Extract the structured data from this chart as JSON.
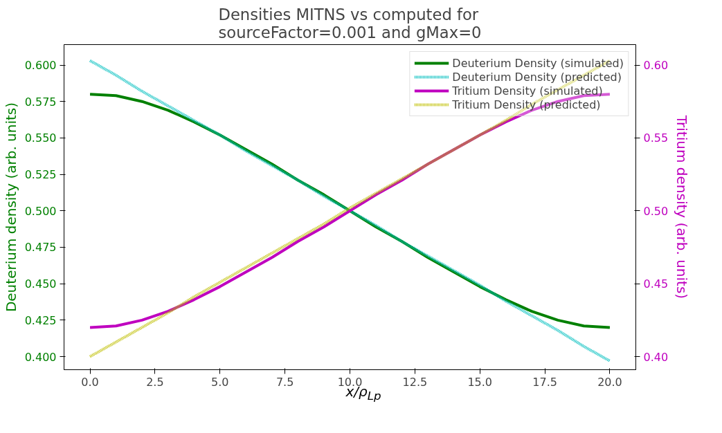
{
  "chart_data": {
    "type": "line",
    "title": "Densities MITNS vs computed for\nsourceFactor=0.001 and gMax=0",
    "xlabel": "x/ρ$_{Lp}$",
    "ylabel": "Deuterium density (arb. units)",
    "y2label": "Tritium density (arb. units)",
    "x": [
      0,
      1,
      2,
      3,
      4,
      5,
      6,
      7,
      8,
      9,
      10,
      11,
      12,
      13,
      14,
      15,
      16,
      17,
      18,
      19,
      20
    ],
    "series": [
      {
        "name": "Deuterium Density (simulated)",
        "color": "#008000",
        "line_style": "solid",
        "values": [
          0.58,
          0.579,
          0.575,
          0.569,
          0.561,
          0.552,
          0.542,
          0.532,
          0.521,
          0.511,
          0.5,
          0.489,
          0.479,
          0.468,
          0.458,
          0.448,
          0.439,
          0.431,
          0.425,
          0.421,
          0.42
        ]
      },
      {
        "name": "Deuterium Density (predicted)",
        "color": "#00bfbf",
        "line_style": "dotted",
        "values": [
          0.603,
          0.593,
          0.582,
          0.572,
          0.562,
          0.552,
          0.541,
          0.531,
          0.521,
          0.51,
          0.5,
          0.49,
          0.479,
          0.469,
          0.459,
          0.449,
          0.438,
          0.428,
          0.418,
          0.407,
          0.397
        ]
      },
      {
        "name": "Tritium Density (simulated)",
        "color": "#bf00bf",
        "line_style": "solid",
        "axis": "y2",
        "values": [
          0.42,
          0.421,
          0.425,
          0.431,
          0.439,
          0.448,
          0.458,
          0.468,
          0.479,
          0.489,
          0.5,
          0.511,
          0.521,
          0.532,
          0.542,
          0.552,
          0.561,
          0.569,
          0.575,
          0.579,
          0.58
        ]
      },
      {
        "name": "Tritium Density (predicted)",
        "color": "#bfbf00",
        "line_style": "dotted",
        "axis": "y2",
        "values": [
          0.4,
          0.41,
          0.42,
          0.43,
          0.441,
          0.451,
          0.461,
          0.471,
          0.481,
          0.491,
          0.502,
          0.512,
          0.522,
          0.532,
          0.542,
          0.552,
          0.562,
          0.573,
          0.583,
          0.593,
          0.603
        ]
      }
    ],
    "xlim": [
      -1,
      21
    ],
    "ylim": [
      0.391,
      0.614
    ],
    "y2lim": [
      0.391,
      0.614
    ],
    "xticks": [
      {
        "value": 0,
        "label": "0.0"
      },
      {
        "value": 2.5,
        "label": "2.5"
      },
      {
        "value": 5,
        "label": "5.0"
      },
      {
        "value": 7.5,
        "label": "7.5"
      },
      {
        "value": 10,
        "label": "10.0"
      },
      {
        "value": 12.5,
        "label": "12.5"
      },
      {
        "value": 15,
        "label": "15.0"
      },
      {
        "value": 17.5,
        "label": "17.5"
      },
      {
        "value": 20,
        "label": "20.0"
      }
    ],
    "yticks": [
      {
        "value": 0.4,
        "label": "0.400"
      },
      {
        "value": 0.425,
        "label": "0.425"
      },
      {
        "value": 0.45,
        "label": "0.450"
      },
      {
        "value": 0.475,
        "label": "0.475"
      },
      {
        "value": 0.5,
        "label": "0.500"
      },
      {
        "value": 0.525,
        "label": "0.525"
      },
      {
        "value": 0.55,
        "label": "0.550"
      },
      {
        "value": 0.575,
        "label": "0.575"
      },
      {
        "value": 0.6,
        "label": "0.600"
      }
    ],
    "y2ticks": [
      {
        "value": 0.4,
        "label": "0.40"
      },
      {
        "value": 0.45,
        "label": "0.45"
      },
      {
        "value": 0.5,
        "label": "0.50"
      },
      {
        "value": 0.55,
        "label": "0.55"
      },
      {
        "value": 0.6,
        "label": "0.60"
      }
    ],
    "grid": false,
    "legend": "top right",
    "marker": "none"
  }
}
